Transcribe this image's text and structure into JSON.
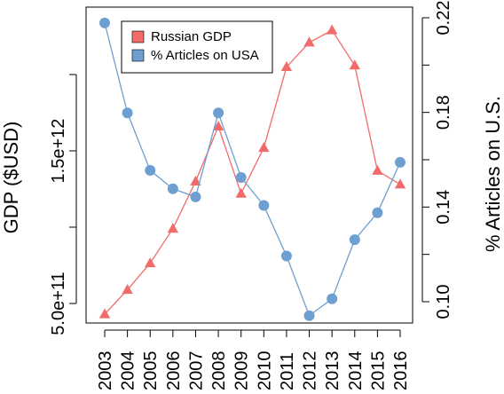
{
  "chart_data": {
    "type": "line",
    "categories": [
      "2003",
      "2004",
      "2005",
      "2006",
      "2007",
      "2008",
      "2009",
      "2010",
      "2011",
      "2012",
      "2013",
      "2014",
      "2015",
      "2016"
    ],
    "series": [
      {
        "name": "Russian GDP",
        "axis": "left",
        "marker": "triangle",
        "color": "#f26b6b",
        "values": [
          430000000000.0,
          590000000000.0,
          764000000000.0,
          990000000000.0,
          1300000000000.0,
          1660000000000.0,
          1220000000000.0,
          1520000000000.0,
          2050000000000.0,
          2210000000000.0,
          2290000000000.0,
          2060000000000.0,
          1370000000000.0,
          1280000000000.0
        ]
      },
      {
        "name": "% Articles on USA",
        "axis": "right",
        "marker": "circle",
        "color": "#6d9fd0",
        "values": [
          0.2178,
          0.1798,
          0.1555,
          0.1477,
          0.1443,
          0.1798,
          0.1525,
          0.1407,
          0.1193,
          0.0941,
          0.1012,
          0.1262,
          0.1376,
          0.1589
        ]
      }
    ],
    "ylabel": "GDP ($USD)",
    "y2label": "% Articles on U.S.",
    "yticks": [
      {
        "value": 500000000000.0,
        "label": "5.0e+11"
      },
      {
        "value": 1000000000000.0,
        "label": ""
      },
      {
        "value": 1500000000000.0,
        "label": "1.5e+12"
      },
      {
        "value": 2000000000000.0,
        "label": ""
      }
    ],
    "y2ticks": [
      {
        "value": 0.1,
        "label": "0.10"
      },
      {
        "value": 0.12,
        "label": ""
      },
      {
        "value": 0.14,
        "label": "0.14"
      },
      {
        "value": 0.16,
        "label": ""
      },
      {
        "value": 0.18,
        "label": "0.18"
      },
      {
        "value": 0.2,
        "label": ""
      },
      {
        "value": 0.22,
        "label": "0.22"
      }
    ],
    "ylim": [
      500000000000.0,
      2400000000000.0
    ],
    "y2lim": [
      0.1,
      0.22
    ],
    "grid": false,
    "legend": {
      "position": "top-left",
      "entries": [
        "Russian GDP",
        "% Articles on USA"
      ]
    }
  }
}
